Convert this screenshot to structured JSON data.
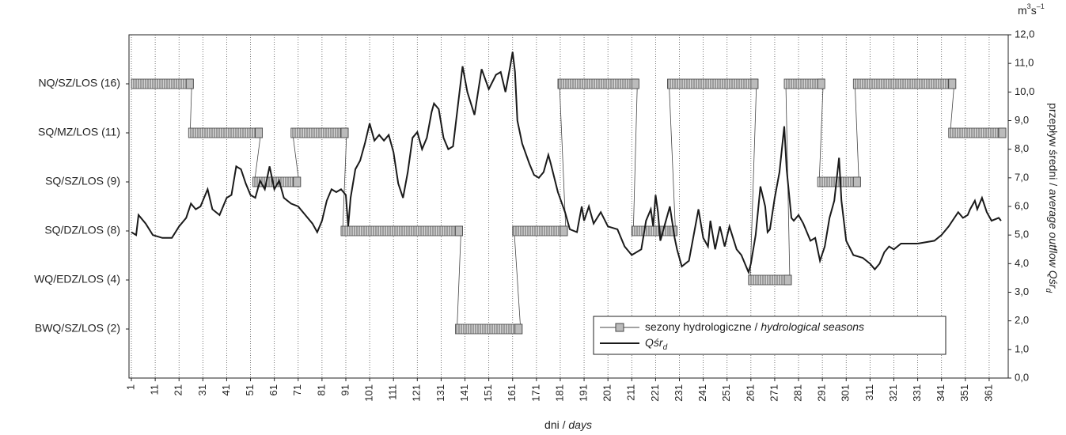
{
  "chart_data": {
    "type": "line",
    "unit": "m",
    "unit_sup": "3",
    "unit_2": "s",
    "unit_sup_2": "–1",
    "x_label": "dni / ",
    "x_label_italic": "days",
    "y_label": "przepływ średni / ",
    "y_label_italic": "average outflow Qśr",
    "y_label_sub": "d",
    "xlim": [
      0,
      369
    ],
    "xticks": [
      1,
      11,
      21,
      31,
      41,
      51,
      61,
      71,
      81,
      91,
      101,
      111,
      121,
      131,
      141,
      151,
      161,
      171,
      181,
      191,
      201,
      211,
      221,
      231,
      241,
      251,
      261,
      271,
      281,
      291,
      301,
      311,
      321,
      331,
      341,
      351,
      361
    ],
    "ylim": [
      0,
      12
    ],
    "yticks": [
      {
        "value": 0,
        "label": "0,0"
      },
      {
        "value": 1,
        "label": "1,0"
      },
      {
        "value": 2,
        "label": "2,0"
      },
      {
        "value": 3,
        "label": "3,0"
      },
      {
        "value": 4,
        "label": "4,0"
      },
      {
        "value": 5,
        "label": "5,0"
      },
      {
        "value": 6,
        "label": "6,0"
      },
      {
        "value": 7,
        "label": "7,0"
      },
      {
        "value": 8,
        "label": "8,0"
      },
      {
        "value": 9,
        "label": "9,0"
      },
      {
        "value": 10,
        "label": "10,0"
      },
      {
        "value": 11,
        "label": "11,0"
      },
      {
        "value": 12,
        "label": "12,0"
      }
    ],
    "grid": true,
    "season_categories": [
      "BWQ/SZ/LOS (2)",
      "WQ/EDZ/LOS (4)",
      "SQ/DZ/LOS (8)",
      "SQ/SZ/LOS (9)",
      "SQ/MZ/LOS (11)",
      "NQ/SZ/LOS (16)"
    ],
    "seasons": {
      "name": "sezony hydrologiczne / ",
      "name_italic": "hydrological seasons",
      "color": "#bbbbbb",
      "segments": [
        {
          "season": "NQ/SZ/LOS (16)",
          "start": 1,
          "end": 27
        },
        {
          "season": "SQ/MZ/LOS (11)",
          "start": 25,
          "end": 56
        },
        {
          "season": "SQ/SZ/LOS (9)",
          "start": 52,
          "end": 72
        },
        {
          "season": "SQ/MZ/LOS (11)",
          "start": 68,
          "end": 92
        },
        {
          "season": "SQ/DZ/LOS (8)",
          "start": 89,
          "end": 140
        },
        {
          "season": "BWQ/SZ/LOS (2)",
          "start": 137,
          "end": 165
        },
        {
          "season": "SQ/DZ/LOS (8)",
          "start": 161,
          "end": 184
        },
        {
          "season": "NQ/SZ/LOS (16)",
          "start": 180,
          "end": 214
        },
        {
          "season": "SQ/DZ/LOS (8)",
          "start": 211,
          "end": 230
        },
        {
          "season": "NQ/SZ/LOS (16)",
          "start": 226,
          "end": 264
        },
        {
          "season": "WQ/EDZ/LOS (4)",
          "start": 260,
          "end": 278
        },
        {
          "season": "NQ/SZ/LOS (16)",
          "start": 275,
          "end": 292
        },
        {
          "season": "SQ/SZ/LOS (9)",
          "start": 289,
          "end": 307
        },
        {
          "season": "NQ/SZ/LOS (16)",
          "start": 304,
          "end": 347
        },
        {
          "season": "SQ/MZ/LOS (11)",
          "start": 344,
          "end": 368
        }
      ]
    },
    "series": [
      {
        "name": "Qśr",
        "name_sub": "d",
        "color": "#1a1a1a",
        "x": [
          1,
          3,
          4,
          7,
          10,
          14,
          18,
          21,
          24,
          26,
          28,
          30,
          33,
          35,
          38,
          41,
          43,
          45,
          47,
          49,
          51,
          53,
          55,
          57,
          59,
          61,
          63,
          65,
          68,
          71,
          74,
          77,
          79,
          81,
          83,
          85,
          87,
          89,
          91,
          92,
          93,
          95,
          97,
          99,
          101,
          103,
          105,
          107,
          109,
          111,
          113,
          115,
          117,
          119,
          121,
          123,
          125,
          127,
          128,
          130,
          132,
          134,
          136,
          138,
          140,
          142,
          145,
          148,
          151,
          154,
          156,
          158,
          160,
          161,
          162,
          163,
          165,
          168,
          170,
          172,
          174,
          176,
          177,
          180,
          183,
          185,
          188,
          190,
          191,
          193,
          195,
          198,
          201,
          205,
          208,
          211,
          215,
          217,
          219,
          220,
          221,
          222,
          223,
          225,
          227,
          229,
          230,
          232,
          235,
          237,
          239,
          241,
          243,
          244,
          246,
          248,
          250,
          252,
          255,
          257,
          260,
          261,
          263,
          265,
          267,
          268,
          269,
          271,
          273,
          275,
          276,
          278,
          279,
          281,
          283,
          286,
          288,
          290,
          292,
          294,
          296,
          298,
          299,
          301,
          304,
          308,
          311,
          313,
          315,
          317,
          319,
          321,
          324,
          331,
          338,
          341,
          344,
          348,
          350,
          352,
          353,
          355,
          356,
          358,
          360,
          362,
          365,
          366
        ],
        "values": [
          5.1,
          5.0,
          5.7,
          5.4,
          5.0,
          4.9,
          4.9,
          5.3,
          5.6,
          6.1,
          5.9,
          6.0,
          6.6,
          5.9,
          5.7,
          6.3,
          6.4,
          7.4,
          7.3,
          6.8,
          6.4,
          6.3,
          6.9,
          6.6,
          7.4,
          6.6,
          6.9,
          6.3,
          6.1,
          6.0,
          5.7,
          5.4,
          5.1,
          5.5,
          6.2,
          6.6,
          6.5,
          6.6,
          6.4,
          5.3,
          6.3,
          7.3,
          7.6,
          8.2,
          8.9,
          8.3,
          8.5,
          8.3,
          8.5,
          7.9,
          6.8,
          6.3,
          7.2,
          8.4,
          8.6,
          8.0,
          8.4,
          9.3,
          9.6,
          9.4,
          8.4,
          8.0,
          8.1,
          9.5,
          10.9,
          10.0,
          9.2,
          10.8,
          10.1,
          10.6,
          10.7,
          10.0,
          10.9,
          11.4,
          10.7,
          9.0,
          8.2,
          7.5,
          7.1,
          7.0,
          7.2,
          7.8,
          7.5,
          6.5,
          5.8,
          5.2,
          5.1,
          6.0,
          5.5,
          6.0,
          5.4,
          5.8,
          5.3,
          5.2,
          4.6,
          4.3,
          4.5,
          5.5,
          5.9,
          5.3,
          6.4,
          5.8,
          4.8,
          5.4,
          6.0,
          4.9,
          4.5,
          3.9,
          4.1,
          5.0,
          5.9,
          4.9,
          4.6,
          5.5,
          4.5,
          5.3,
          4.6,
          5.3,
          4.5,
          4.3,
          3.7,
          4.0,
          5.0,
          6.7,
          6.0,
          5.1,
          5.2,
          6.3,
          7.2,
          8.8,
          7.3,
          5.6,
          5.5,
          5.7,
          5.4,
          4.8,
          4.9,
          4.1,
          4.6,
          5.6,
          6.2,
          7.7,
          6.2,
          4.8,
          4.3,
          4.2,
          4.0,
          3.8,
          4.0,
          4.4,
          4.6,
          4.5,
          4.7,
          4.7,
          4.8,
          5.0,
          5.3,
          5.8,
          5.6,
          5.7,
          5.9,
          6.2,
          5.9,
          6.3,
          5.8,
          5.5,
          5.6,
          5.5
        ]
      }
    ]
  }
}
